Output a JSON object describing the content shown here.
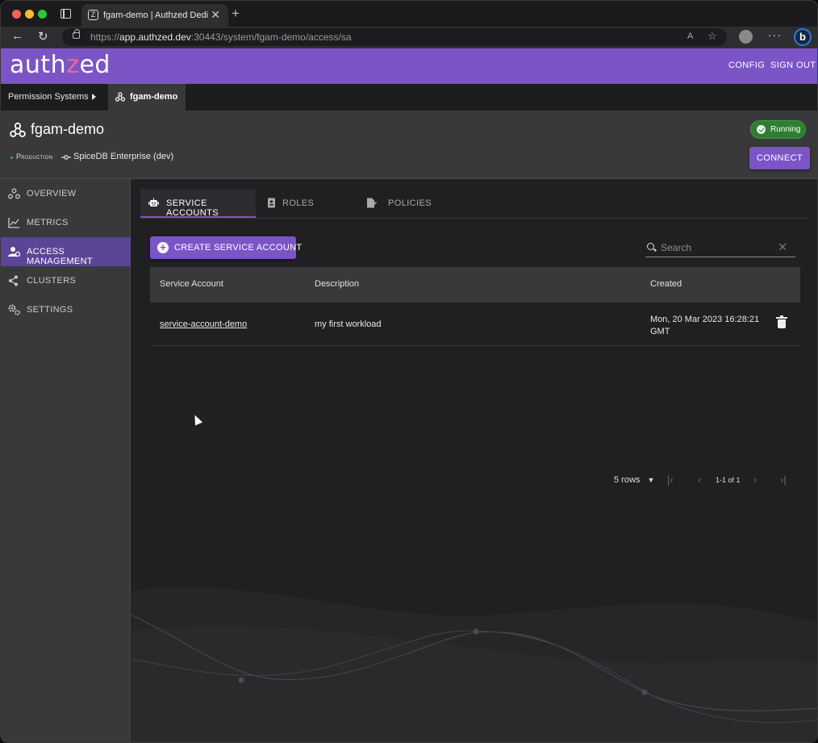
{
  "browser": {
    "tab_title": "fgam-demo | Authzed Dedicated",
    "url_prefix": "https://",
    "url_host": "app.authzed.dev",
    "url_rest": ":30443/system/fgam-demo/access/sa",
    "new_tab": "+",
    "tab_close": "✕",
    "reader_label": "A",
    "more_label": "···",
    "copilot_label": "b"
  },
  "app": {
    "logo_pre": "auth",
    "logo_z": "z",
    "logo_post": "ed",
    "nav_config": "CONFIG",
    "nav_signout": "SIGN OUT"
  },
  "breadcrumb": {
    "root": "Permission Systems",
    "current": "fgam-demo"
  },
  "system": {
    "title": "fgam-demo",
    "environment": "Production",
    "edition": "SpiceDB Enterprise (dev)",
    "status": "Running",
    "connect_label": "CONNECT"
  },
  "sidebar": {
    "items": [
      {
        "label": "OVERVIEW",
        "icon": "network-icon"
      },
      {
        "label": "METRICS",
        "icon": "chart-line-icon"
      },
      {
        "label": "ACCESS MANAGEMENT",
        "icon": "user-gear-icon"
      },
      {
        "label": "CLUSTERS",
        "icon": "share-nodes-icon"
      },
      {
        "label": "SETTINGS",
        "icon": "gears-icon"
      }
    ],
    "active_index": 2
  },
  "tabs": [
    {
      "label": "SERVICE ACCOUNTS",
      "icon": "robot-icon"
    },
    {
      "label": "ROLES",
      "icon": "id-badge-icon"
    },
    {
      "label": "POLICIES",
      "icon": "file-signature-icon"
    }
  ],
  "actions": {
    "create_label": "CREATE SERVICE ACCOUNT",
    "search_placeholder": "Search",
    "search_clear": "✕"
  },
  "table": {
    "headers": [
      "Service Account",
      "Description",
      "Created"
    ],
    "rows": [
      {
        "name": "service-account-demo",
        "description": "my first workload",
        "created_line1": "Mon, 20 Mar 2023 16:28:21",
        "created_line2": "GMT"
      }
    ]
  },
  "pagination": {
    "rows_per_page": "5 rows",
    "range": "1-1 of 1",
    "first": "|‹",
    "prev": "‹",
    "next": "›",
    "last": "›|"
  },
  "colors": {
    "brand": "#7b55c6",
    "accent_pink": "#f06795",
    "running": "#2e7d32"
  }
}
